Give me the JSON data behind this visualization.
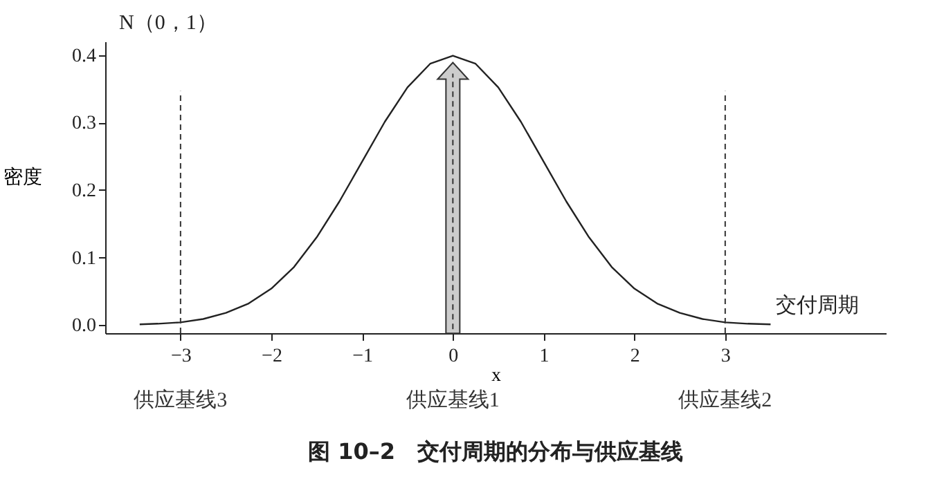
{
  "chart_data": {
    "type": "line",
    "title": "图 10–2　交付周期的分布与供应基线",
    "xlabel": "x",
    "ylabel": "密度",
    "annotations": [
      "N（0，1）",
      "供应基线3",
      "供应基线1",
      "供应基线2"
    ],
    "x": [
      -3.45,
      -3.25,
      -3,
      -2.75,
      -2.5,
      -2.25,
      -2,
      -1.75,
      -1.5,
      -1.25,
      -1,
      -0.75,
      -0.5,
      -0.25,
      0,
      0.25,
      0.5,
      0.75,
      1,
      1.25,
      1.5,
      1.75,
      2,
      2.25,
      2.5,
      2.75,
      3,
      3.25,
      3.5
    ],
    "series": [
      {
        "name": "交付周期",
        "color": "#222222",
        "values": [
          0.001,
          0.002,
          0.004,
          0.009,
          0.018,
          0.032,
          0.054,
          0.086,
          0.13,
          0.183,
          0.242,
          0.301,
          0.352,
          0.387,
          0.399,
          0.387,
          0.352,
          0.301,
          0.242,
          0.183,
          0.13,
          0.086,
          0.054,
          0.032,
          0.018,
          0.009,
          0.004,
          0.002,
          0.001
        ]
      }
    ],
    "xlim": [
      -3.83,
      4.77
    ],
    "ylim": [
      -0.012,
      0.42
    ],
    "xticks": [
      -3,
      -2,
      -1,
      0,
      1,
      2,
      3
    ],
    "yticks": [
      {
        "value": 0,
        "label": "0.0"
      },
      0.1,
      0.2,
      0.3,
      0.4
    ],
    "ref_lines": [
      {
        "axis": "x",
        "value": -3,
        "line_style": "dashed",
        "color": "#333333"
      },
      {
        "axis": "x",
        "value": 0,
        "line_style": "dashed",
        "color": "#333333"
      },
      {
        "axis": "x",
        "value": 3,
        "line_style": "dashed",
        "color": "#333333"
      }
    ],
    "grid": false,
    "marker": "none",
    "line_style": "solid"
  }
}
